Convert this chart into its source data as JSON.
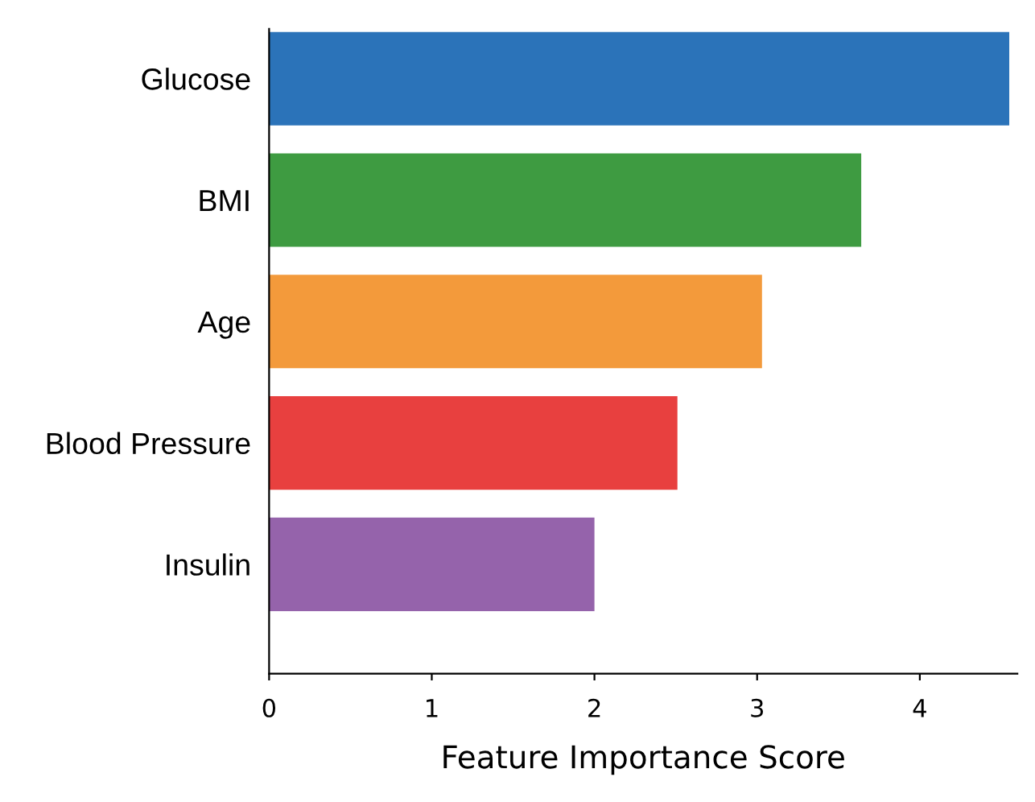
{
  "chart_data": {
    "type": "bar",
    "orientation": "horizontal",
    "xlabel": "Feature Importance Score",
    "categories": [
      "Glucose",
      "BMI",
      "Age",
      "Blood Pressure",
      "Insulin"
    ],
    "values": [
      4.55,
      3.64,
      3.03,
      2.51,
      2.0
    ],
    "colors": [
      "#2b73b9",
      "#3e9b41",
      "#f39a3b",
      "#e8403f",
      "#9563ab"
    ],
    "xlim": [
      0,
      4.6
    ],
    "xticks": [
      0,
      1,
      2,
      3,
      4
    ],
    "grid": false,
    "legend": false
  }
}
